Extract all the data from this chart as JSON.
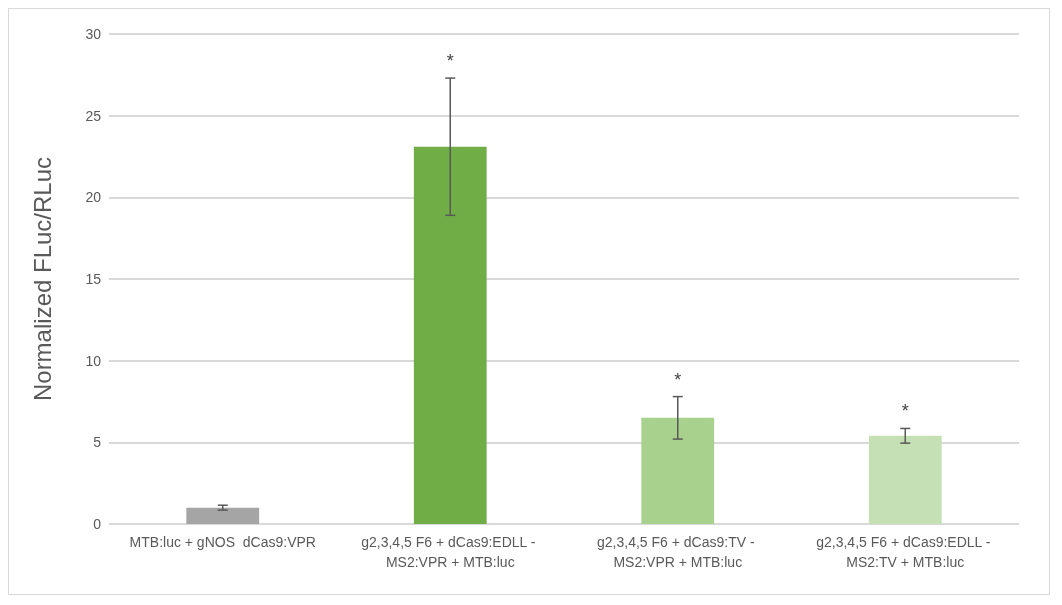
{
  "chart_data": {
    "type": "bar",
    "ylabel": "Normalized FLuc/RLuc",
    "categories": [
      "MTB:luc + gNOS  dCas9:VPR",
      "g2,3,4,5 F6 + dCas9:EDLL - MS2:VPR + MTB:luc",
      "g2,3,4,5 F6 + dCas9:TV - MS2:VPR + MTB:luc",
      "g2,3,4,5 F6 + dCas9:EDLL - MS2:TV + MTB:luc"
    ],
    "values": [
      1.0,
      23.1,
      6.5,
      5.4
    ],
    "colors": [
      "#a5a5a5",
      "#70ad47",
      "#a9d18e",
      "#c5e0b4"
    ],
    "errors": [
      0.15,
      4.2,
      1.3,
      0.45
    ],
    "ylim": [
      0,
      30
    ],
    "yticks": [
      0,
      5,
      10,
      15,
      20,
      25,
      30
    ],
    "grid": "y",
    "annotations": [
      "*",
      "*",
      "*"
    ]
  }
}
